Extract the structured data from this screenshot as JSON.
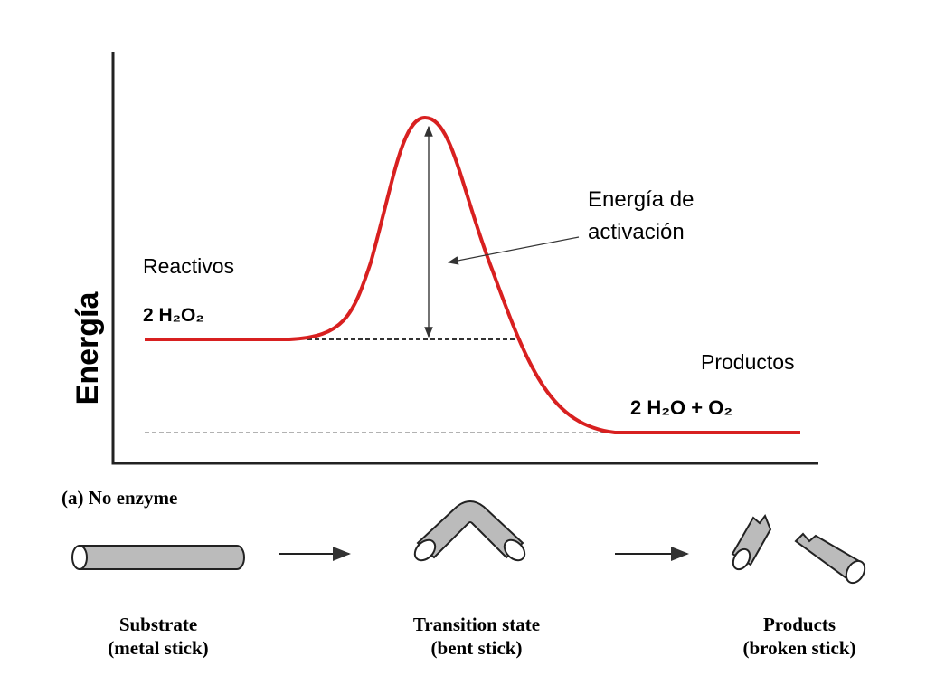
{
  "diagram": {
    "y_axis_label": "Energía",
    "reactants": {
      "label": "Reactivos",
      "formula": "2 H₂O₂"
    },
    "activation_energy": {
      "lines": [
        "Energía de",
        "activación"
      ]
    },
    "products": {
      "label": "Productos",
      "formula": "2 H₂O + O₂"
    }
  },
  "panel": {
    "label": "(a) No enzyme",
    "stages": [
      {
        "name": "Substrate",
        "note": "(metal stick)"
      },
      {
        "name": "Transition state",
        "note": "(bent stick)"
      },
      {
        "name": "Products",
        "note": "(broken stick)"
      }
    ]
  }
}
